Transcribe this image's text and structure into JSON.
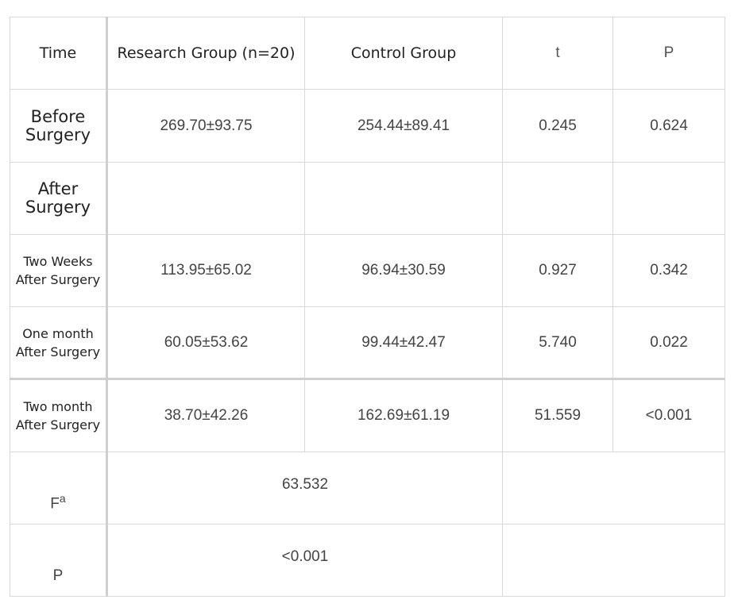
{
  "table": {
    "headers": {
      "time": "Time",
      "research": "Research Group (n=20)",
      "control": "Control Group",
      "t": "t",
      "p": "P"
    },
    "rows": [
      {
        "label_line1": "Before",
        "label_line2": "Surgery",
        "research": "269.70±93.75",
        "control": "254.44±89.41",
        "t": "0.245",
        "p": "0.624"
      },
      {
        "label_line1": "After",
        "label_line2": "Surgery",
        "research": "",
        "control": "",
        "t": "",
        "p": ""
      },
      {
        "label_line1": "Two Weeks",
        "label_line2": "After Surgery",
        "research": "113.95±65.02",
        "control": "96.94±30.59",
        "t": "0.927",
        "p": "0.342"
      },
      {
        "label_line1": "One month",
        "label_line2": "After Surgery",
        "research": "60.05±53.62",
        "control": "99.44±42.47",
        "t": "5.740",
        "p": "0.022"
      },
      {
        "label_line1": "Two month",
        "label_line2": "After Surgery",
        "research": "38.70±42.26",
        "control": "162.69±61.19",
        "t": "51.559",
        "p": "<0.001"
      }
    ],
    "f_row": {
      "label": "F",
      "superscript": "a",
      "value": "63.532"
    },
    "p_row": {
      "label": "P",
      "value": "<0.001"
    }
  }
}
